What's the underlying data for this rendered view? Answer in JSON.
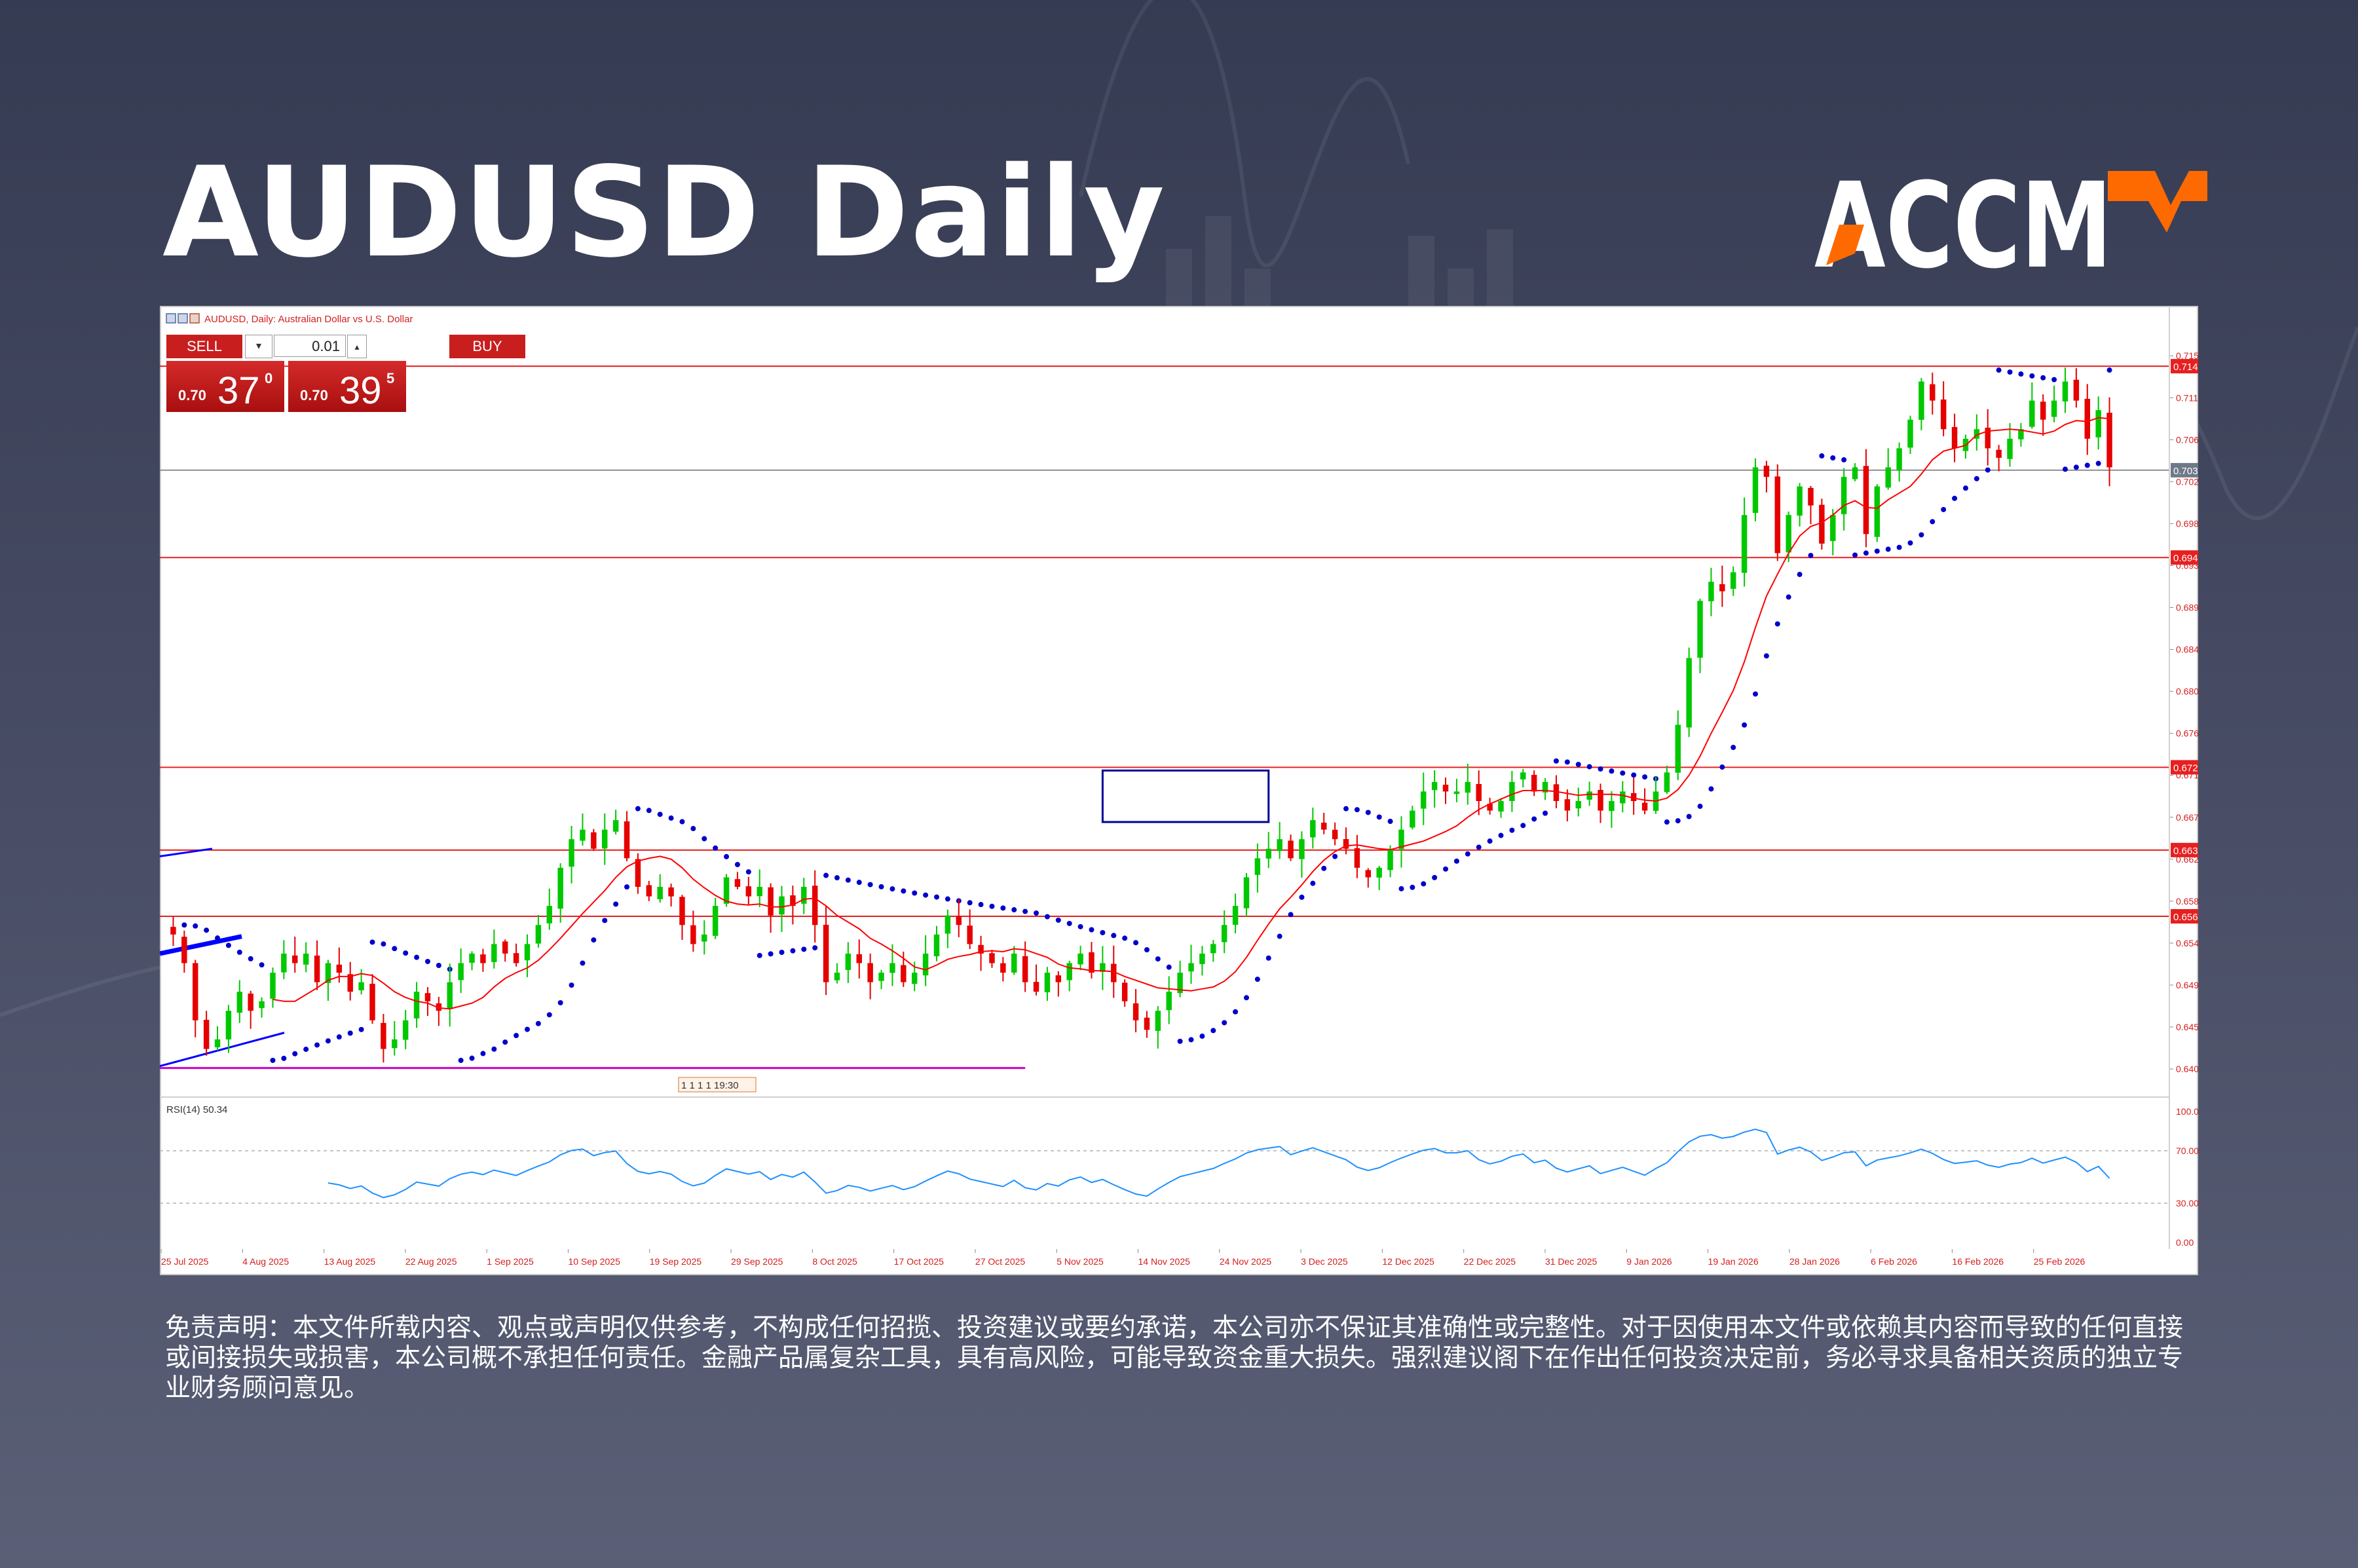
{
  "header": {
    "title": "AUDUSD Daily",
    "brand": "ACCM"
  },
  "colors": {
    "background": "#3b4057",
    "bull_candle": "#00c800",
    "bear_candle": "#e60000",
    "level_line": "#e62020",
    "sma_line": "#ff0000",
    "psar_dots": "#0000cc",
    "support_line": "#cc00cc",
    "channel_lines": "#0000ff",
    "consolidation_box": "#000099",
    "rsi_line": "#1e90ff",
    "price_line": "#909090",
    "brand_orange": "#ff6a00",
    "sell_buy_red": "#c81e1e"
  },
  "chart_header": {
    "symbol_label": "AUDUSD, Daily:  Australian Dollar vs U.S. Dollar"
  },
  "trade_panel": {
    "sell_label": "SELL",
    "buy_label": "BUY",
    "lot_value": "0.01",
    "dropdown_icon": "▾",
    "stepper_icon": "▴",
    "sell_quote": {
      "prefix": "0.70",
      "big": "37",
      "sup": "0"
    },
    "buy_quote": {
      "prefix": "0.70",
      "big": "39",
      "sup": "5"
    }
  },
  "chart_data": {
    "type": "candlestick",
    "title": "AUDUSD Daily",
    "symbol": "AUDUSD",
    "timeframe": "Daily",
    "x_tick_labels": [
      "25 Jul 2025",
      "4 Aug 2025",
      "13 Aug 2025",
      "22 Aug 2025",
      "1 Sep 2025",
      "10 Sep 2025",
      "19 Sep 2025",
      "29 Sep 2025",
      "8 Oct 2025",
      "17 Oct 2025",
      "27 Oct 2025",
      "5 Nov 2025",
      "14 Nov 2025",
      "24 Nov 2025",
      "3 Dec 2025",
      "12 Dec 2025",
      "22 Dec 2025",
      "31 Dec 2025",
      "9 Jan 2026",
      "19 Jan 2026",
      "28 Jan 2026",
      "6 Feb 2026",
      "16 Feb 2026",
      "25 Feb 2026"
    ],
    "y_tick_labels": [
      "0.71570",
      "0.71130",
      "0.70690",
      "0.70250",
      "0.69810",
      "0.69370",
      "0.68930",
      "0.68490",
      "0.68050",
      "0.67610",
      "0.67170",
      "0.66730",
      "0.66290",
      "0.65850",
      "0.65410",
      "0.64970",
      "0.64530",
      "0.64090"
    ],
    "ylim": [
      0.6385,
      0.7175
    ],
    "closes": [
      0.655,
      0.652,
      0.646,
      0.643,
      0.644,
      0.647,
      0.649,
      0.647,
      0.648,
      0.651,
      0.653,
      0.652,
      0.653,
      0.65,
      0.652,
      0.651,
      0.649,
      0.65,
      0.646,
      0.643,
      0.644,
      0.646,
      0.649,
      0.648,
      0.647,
      0.65,
      0.652,
      0.653,
      0.652,
      0.654,
      0.653,
      0.652,
      0.654,
      0.656,
      0.658,
      0.662,
      0.665,
      0.666,
      0.664,
      0.666,
      0.667,
      0.663,
      0.66,
      0.659,
      0.66,
      0.659,
      0.656,
      0.654,
      0.655,
      0.658,
      0.661,
      0.66,
      0.659,
      0.66,
      0.657,
      0.659,
      0.658,
      0.66,
      0.656,
      0.65,
      0.651,
      0.653,
      0.652,
      0.65,
      0.651,
      0.652,
      0.65,
      0.651,
      0.653,
      0.655,
      0.657,
      0.656,
      0.654,
      0.653,
      0.652,
      0.651,
      0.653,
      0.65,
      0.649,
      0.651,
      0.65,
      0.652,
      0.653,
      0.651,
      0.652,
      0.65,
      0.648,
      0.646,
      0.645,
      0.647,
      0.649,
      0.651,
      0.652,
      0.653,
      0.654,
      0.656,
      0.658,
      0.661,
      0.663,
      0.664,
      0.665,
      0.663,
      0.665,
      0.667,
      0.666,
      0.665,
      0.664,
      0.662,
      0.661,
      0.662,
      0.664,
      0.666,
      0.668,
      0.67,
      0.671,
      0.67,
      0.67,
      0.671,
      0.669,
      0.668,
      0.669,
      0.671,
      0.672,
      0.67,
      0.671,
      0.669,
      0.668,
      0.669,
      0.67,
      0.668,
      0.669,
      0.67,
      0.669,
      0.668,
      0.67,
      0.672,
      0.677,
      0.684,
      0.69,
      0.692,
      0.691,
      0.693,
      0.699,
      0.704,
      0.703,
      0.695,
      0.699,
      0.702,
      0.7,
      0.696,
      0.699,
      0.703,
      0.704,
      0.697,
      0.702,
      0.704,
      0.706,
      0.709,
      0.713,
      0.711,
      0.708,
      0.706,
      0.707,
      0.708,
      0.706,
      0.705,
      0.707,
      0.708,
      0.711,
      0.709,
      0.711,
      0.713,
      0.711,
      0.707,
      0.71,
      0.704
    ],
    "price_levels": [
      0.71461,
      0.7037,
      0.69454,
      0.67254,
      0.66386,
      0.65691
    ],
    "price_level_labels": [
      "0.71461",
      "0.70370",
      "0.69454",
      "0.67254",
      "0.66386",
      "0.65691"
    ],
    "support_level": 0.641,
    "indicators": {
      "moving_average": "SMA",
      "parabolic_sar": true,
      "rsi": {
        "label": "RSI(14) 50.34",
        "period": 14,
        "value": 50.34,
        "levels": [
          70,
          30
        ],
        "axis_labels": [
          "100.00",
          "70.00",
          "30.00",
          "0.00"
        ]
      }
    },
    "time_marker": "1 1 1 1 19:30",
    "grid": false
  },
  "footer": {
    "disclaimer": "免责声明：本文件所载内容、观点或声明仅供参考，不构成任何招揽、投资建议或要约承诺，本公司亦不保证其准确性或完整性。对于因使用本文件或依赖其内容而导致的任何直接或间接损失或损害，本公司概不承担任何责任。金融产品属复杂工具，具有高风险，可能导致资金重大损失。强烈建议阁下在作出任何投资决定前，务必寻求具备相关资质的独立专业财务顾问意见。"
  }
}
